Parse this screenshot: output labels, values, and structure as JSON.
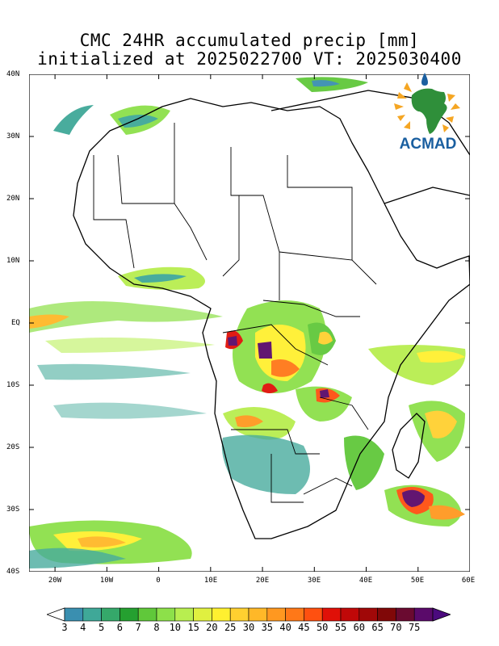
{
  "title": {
    "line1": "CMC 24HR accumulated precip [mm]",
    "line2": "initialized at 2025022700 VT: 2025030400"
  },
  "map": {
    "lon_range": [
      -25,
      60
    ],
    "lat_range": [
      -40,
      40
    ],
    "lat_labels": [
      "40N",
      "30N",
      "20N",
      "10N",
      "EQ",
      "10S",
      "20S",
      "30S",
      "40S"
    ],
    "lat_values": [
      40,
      30,
      20,
      10,
      0,
      -10,
      -20,
      -30,
      -40
    ],
    "lon_labels": [
      "20W",
      "10W",
      "0",
      "10E",
      "20E",
      "30E",
      "40E",
      "50E",
      "60E"
    ],
    "lon_values": [
      -20,
      -10,
      0,
      10,
      20,
      30,
      40,
      50,
      60
    ]
  },
  "logo": {
    "text": "ACMAD"
  },
  "colorbar": {
    "labels": [
      "3",
      "4",
      "5",
      "6",
      "7",
      "8",
      "10",
      "15",
      "20",
      "25",
      "30",
      "35",
      "40",
      "45",
      "50",
      "55",
      "60",
      "65",
      "70",
      "75"
    ],
    "colors": [
      "#3a8fb0",
      "#3fa898",
      "#35a86a",
      "#25a030",
      "#60c83a",
      "#8de04a",
      "#b8ee50",
      "#e0f040",
      "#fff030",
      "#ffd030",
      "#ffb828",
      "#ff9820",
      "#ff7818",
      "#ff5010",
      "#e01008",
      "#c00808",
      "#a00808",
      "#800808",
      "#6a0a30",
      "#5a0a6a"
    ],
    "end_low": "#ffffff",
    "end_high": "#4b0a7e"
  }
}
